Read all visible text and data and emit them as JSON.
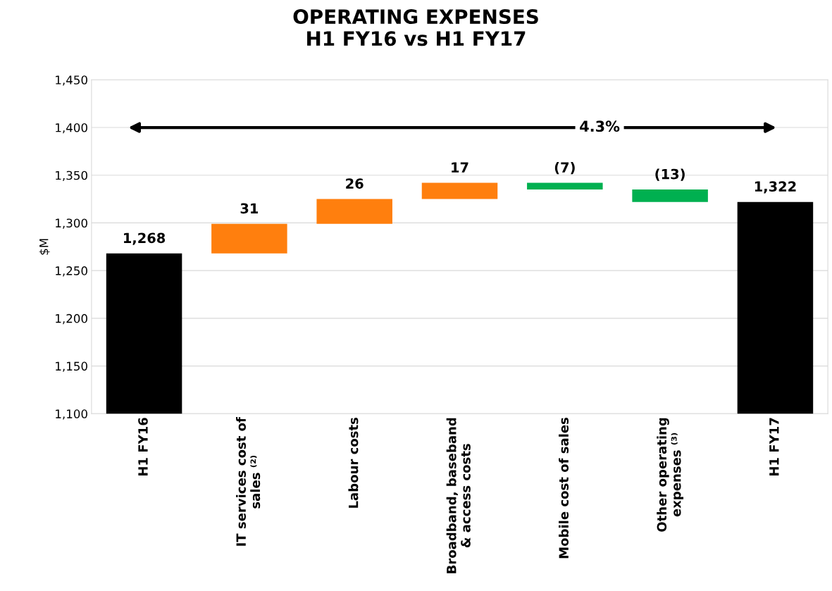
{
  "chart_data": {
    "type": "bar",
    "title": "OPERATING EXPENSES\nH1 FY16 vs H1 FY17",
    "ylabel": "$M",
    "categories": [
      "H1 FY16",
      "IT services cost of\nsales ⁽²⁾",
      "Labour costs",
      "Broadband, baseband\n& access costs",
      "Mobile cost of sales",
      "Other operating\nexpenses ⁽³⁾",
      "H1 FY17"
    ],
    "values": [
      1268,
      31,
      26,
      17,
      -7,
      -13,
      1322
    ],
    "base": [
      0,
      1268,
      1299,
      1325,
      1342,
      1335,
      0
    ],
    "colors": [
      "#000000",
      "#ff7f0e",
      "#ff7f0e",
      "#ff7f0e",
      "#00b050",
      "#00b050",
      "#000000"
    ],
    "value_labels": [
      "1,268",
      "31",
      "26",
      "17",
      "(7)",
      "(13)",
      "1,322"
    ],
    "ylim": [
      1100,
      1450
    ],
    "yticks": [
      {
        "value": 1100,
        "label": "1,100"
      },
      {
        "value": 1150,
        "label": "1,150"
      },
      {
        "value": 1200,
        "label": "1,200"
      },
      {
        "value": 1250,
        "label": "1,250"
      },
      {
        "value": 1300,
        "label": "1,300"
      },
      {
        "value": 1350,
        "label": "1,350"
      },
      {
        "value": 1400,
        "label": "1,400"
      },
      {
        "value": 1450,
        "label": "1,450"
      }
    ],
    "grid": "y",
    "annotations": [
      "4.3%"
    ]
  }
}
